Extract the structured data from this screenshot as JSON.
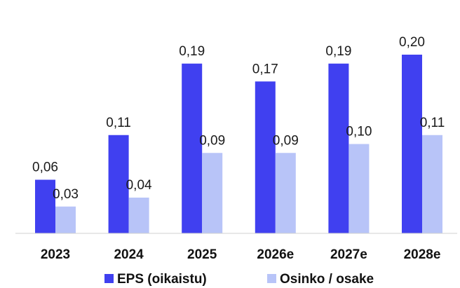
{
  "chart_data": {
    "type": "bar",
    "categories": [
      "2023",
      "2024",
      "2025",
      "2026e",
      "2027e",
      "2028e"
    ],
    "series": [
      {
        "name": "EPS (oikaistu)",
        "values": [
          0.06,
          0.11,
          0.19,
          0.17,
          0.19,
          0.2
        ],
        "labels": [
          "0,06",
          "0,11",
          "0,19",
          "0,17",
          "0,19",
          "0,20"
        ],
        "color": "#4040f0"
      },
      {
        "name": "Osinko / osake",
        "values": [
          0.03,
          0.04,
          0.09,
          0.09,
          0.1,
          0.11
        ],
        "labels": [
          "0,03",
          "0,04",
          "0,09",
          "0,09",
          "0,10",
          "0,11"
        ],
        "color": "#b8c4f8"
      }
    ],
    "ylim": [
      0,
      0.2
    ],
    "grid": false,
    "legend_position": "bottom",
    "baseline_color": "#d0d0d0"
  }
}
